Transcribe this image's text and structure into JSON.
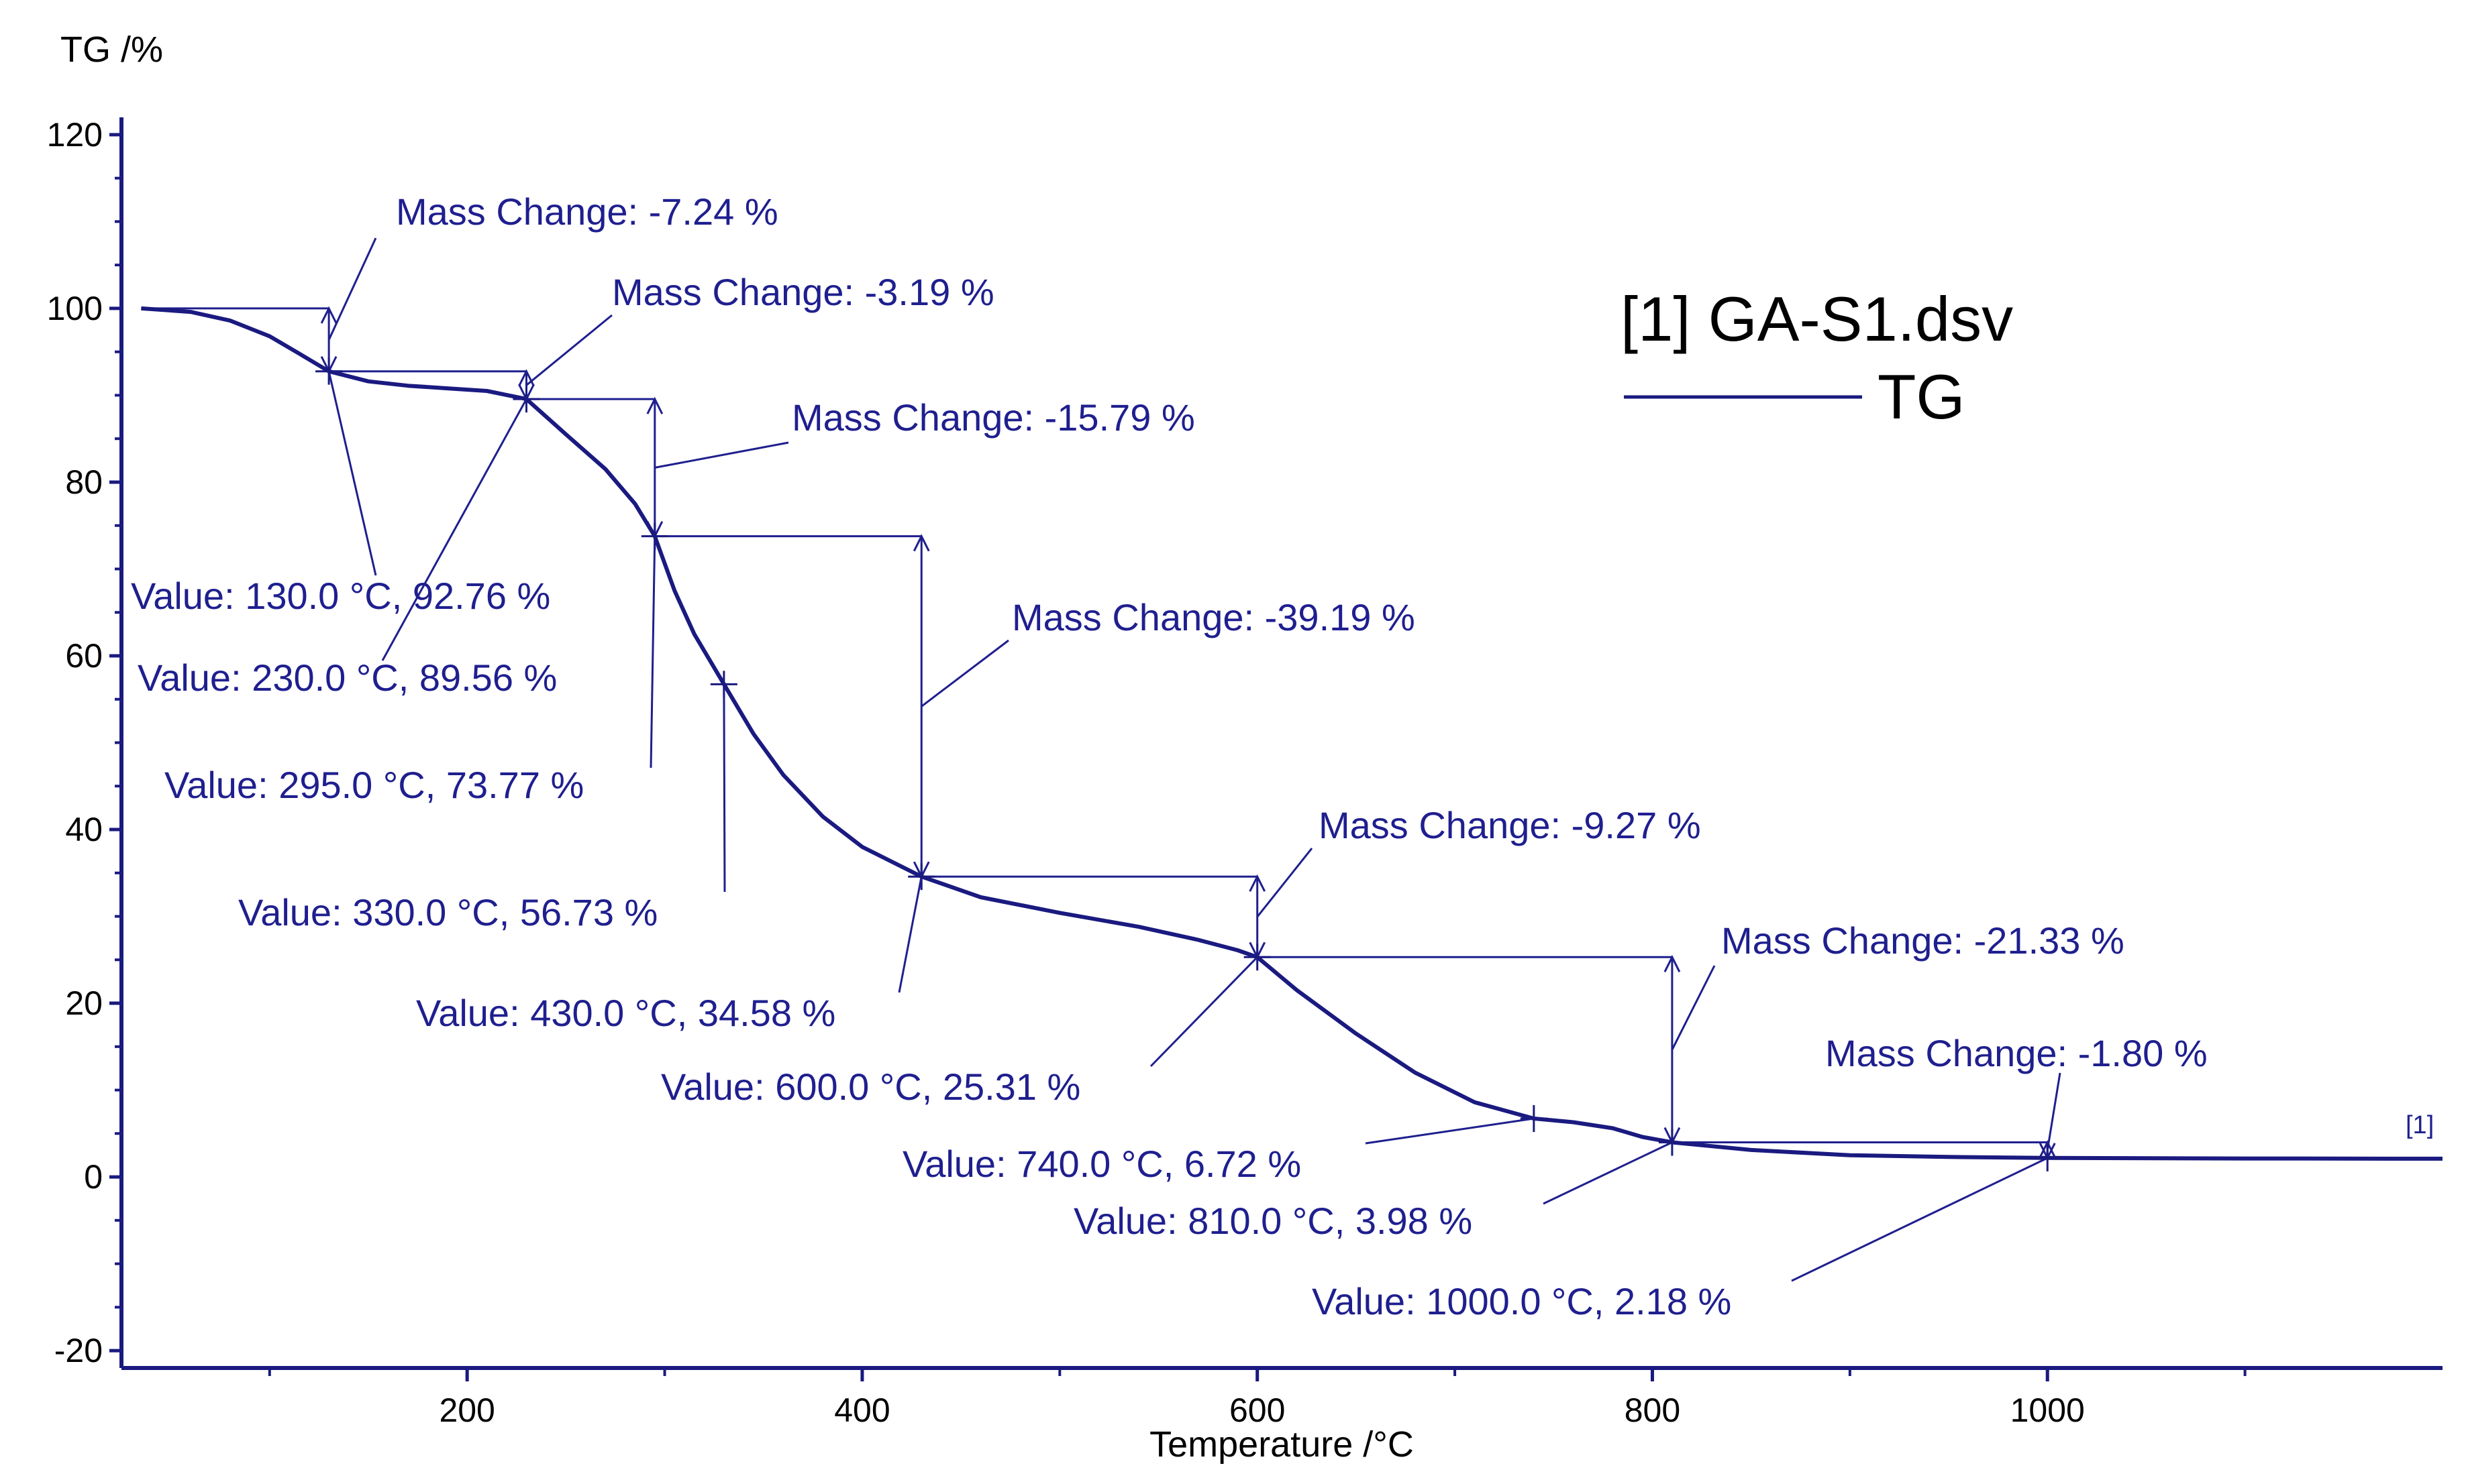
{
  "chart_data": {
    "type": "line",
    "title": "[1] GA-S1.dsv",
    "xlabel": "Temperature /°C",
    "ylabel": "TG /%",
    "xlim": [
      25,
      1200
    ],
    "ylim": [
      -22,
      122
    ],
    "xticks": [
      200,
      400,
      600,
      800,
      1000
    ],
    "yticks": [
      -20,
      0,
      20,
      40,
      60,
      80,
      100,
      120
    ],
    "xtick_labels": [
      "200",
      "400",
      "600",
      "800",
      "1000"
    ],
    "ytick_labels": [
      "-20",
      "0",
      "20",
      "40",
      "60",
      "80",
      "100",
      "120"
    ],
    "legend": {
      "title": "[1] GA-S1.dsv",
      "entry": "TG",
      "placement": "top-right"
    },
    "curve_end_label": "[1]",
    "colors": {
      "curve": "#1a1a80",
      "annotation": "#1f1f8f",
      "axis": "#1a1a80",
      "text": "#000000"
    },
    "series": [
      {
        "name": "TG",
        "x": [
          35,
          60,
          80,
          100,
          115,
          130,
          150,
          170,
          190,
          210,
          230,
          250,
          270,
          285,
          295,
          305,
          315,
          330,
          345,
          360,
          380,
          400,
          430,
          460,
          500,
          540,
          570,
          590,
          600,
          620,
          650,
          680,
          710,
          740,
          760,
          780,
          795,
          810,
          850,
          900,
          950,
          1000,
          1100,
          1200
        ],
        "y": [
          100,
          99.6,
          98.6,
          96.8,
          94.8,
          92.76,
          91.6,
          91.1,
          90.8,
          90.5,
          89.56,
          85.5,
          81.5,
          77.5,
          73.77,
          67.5,
          62.5,
          56.73,
          51,
          46.3,
          41.5,
          38,
          34.58,
          32.2,
          30.4,
          28.8,
          27.3,
          26.1,
          25.31,
          21.5,
          16.5,
          12,
          8.6,
          6.72,
          6.3,
          5.6,
          4.6,
          3.98,
          3.1,
          2.5,
          2.3,
          2.18,
          2.12,
          2.1
        ]
      }
    ],
    "value_annotations": [
      {
        "text": "Value: 130.0 °C, 92.76 %",
        "t": 130.0,
        "v": 92.76
      },
      {
        "text": "Value: 230.0 °C, 89.56 %",
        "t": 230.0,
        "v": 89.56
      },
      {
        "text": "Value: 295.0 °C, 73.77 %",
        "t": 295.0,
        "v": 73.77
      },
      {
        "text": "Value: 330.0 °C, 56.73 %",
        "t": 330.0,
        "v": 56.73
      },
      {
        "text": "Value: 430.0 °C, 34.58 %",
        "t": 430.0,
        "v": 34.58
      },
      {
        "text": "Value: 600.0 °C, 25.31 %",
        "t": 600.0,
        "v": 25.31
      },
      {
        "text": "Value: 740.0 °C, 6.72 %",
        "t": 740.0,
        "v": 6.72
      },
      {
        "text": "Value: 810.0 °C, 3.98 %",
        "t": 810.0,
        "v": 3.98
      },
      {
        "text": "Value: 1000.0 °C, 2.18 %",
        "t": 1000.0,
        "v": 2.18
      }
    ],
    "mass_changes": [
      {
        "text": "Mass Change: -7.24 %",
        "t_start": 35,
        "t_end": 130,
        "v_start": 100,
        "v_end": 92.76
      },
      {
        "text": "Mass Change: -3.19 %",
        "t_start": 130,
        "t_end": 230,
        "v_start": 92.76,
        "v_end": 89.56
      },
      {
        "text": "Mass Change: -15.79 %",
        "t_start": 230,
        "t_end": 295,
        "v_start": 89.56,
        "v_end": 73.77
      },
      {
        "text": "Mass Change: -39.19 %",
        "t_start": 295,
        "t_end": 430,
        "v_start": 73.77,
        "v_end": 34.58
      },
      {
        "text": "Mass Change: -9.27 %",
        "t_start": 430,
        "t_end": 600,
        "v_start": 34.58,
        "v_end": 25.31
      },
      {
        "text": "Mass Change: -21.33 %",
        "t_start": 600,
        "t_end": 810,
        "v_start": 25.31,
        "v_end": 3.98
      },
      {
        "text": "Mass Change: -1.80 %",
        "t_start": 810,
        "t_end": 1000,
        "v_start": 3.98,
        "v_end": 2.18
      }
    ]
  }
}
